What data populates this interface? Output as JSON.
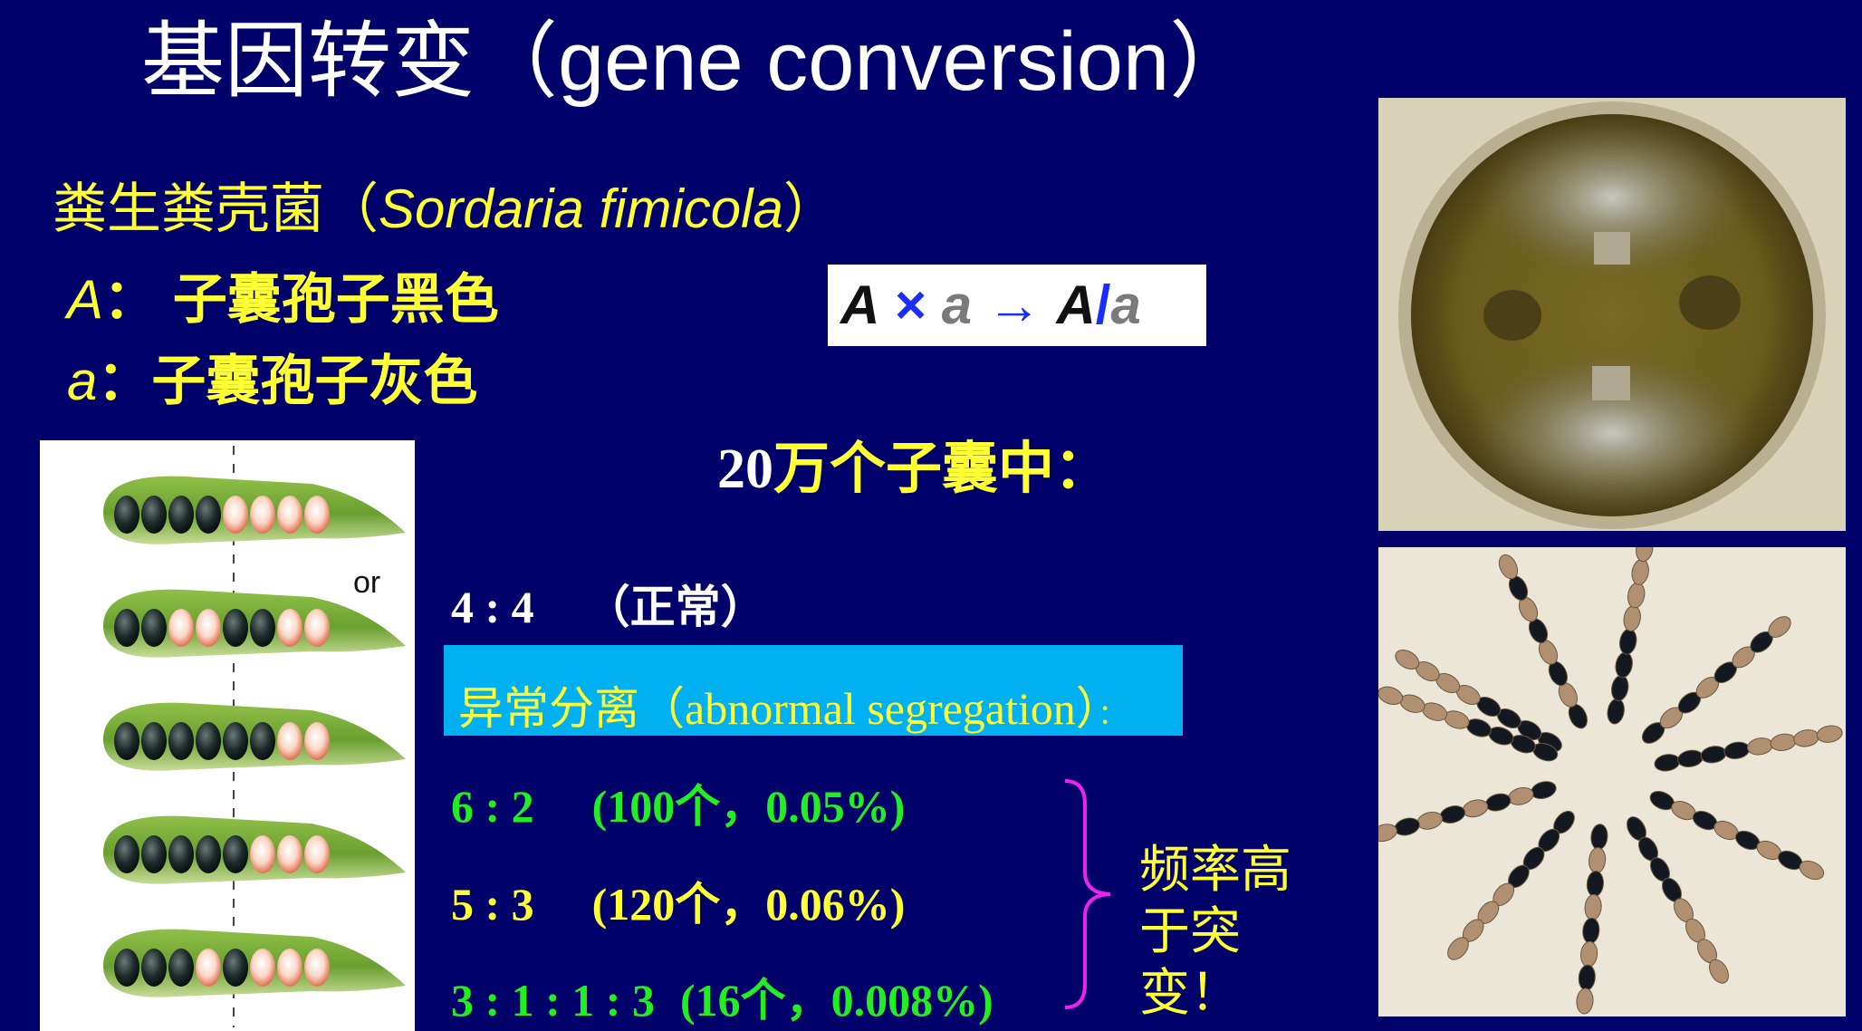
{
  "title": "基因转变（gene conversion）",
  "species": {
    "cn": "粪生粪壳菌（",
    "latin": "Sordaria  fimicola",
    "close": "）"
  },
  "alleles": [
    {
      "symbol": "A",
      "sep": "：  ",
      "text": "子囊孢子黑色"
    },
    {
      "symbol": "a",
      "sep": "：",
      "text": "子囊孢子灰色"
    }
  ],
  "formula": {
    "A": "A",
    "times": " × ",
    "a": "a",
    "arrow": " → ",
    "A2": "A",
    "slash": "/",
    "a2": "a"
  },
  "heading": {
    "number": "20",
    "text": "万个子囊中："
  },
  "normal": {
    "ratio": "4 : 4",
    "label": "（正常）"
  },
  "abnormal": {
    "label": "异常分离（abnormal segregation）",
    "colon": "："
  },
  "ratios": [
    {
      "ratio": "6 : 2",
      "info": "(100个，0.05%)"
    },
    {
      "ratio": "5 : 3",
      "info": "(120个，0.06%)"
    },
    {
      "ratio": "3 : 1 : 1 : 3",
      "info": "(16个，0.008%)"
    }
  ],
  "note": "频率高于突变！",
  "or_label": "or",
  "asci_rows": [
    [
      "d",
      "d",
      "d",
      "d",
      "l",
      "l",
      "l",
      "l"
    ],
    [
      "d",
      "d",
      "l",
      "l",
      "d",
      "d",
      "l",
      "l"
    ],
    [
      "d",
      "d",
      "d",
      "d",
      "d",
      "d",
      "l",
      "l"
    ],
    [
      "d",
      "d",
      "d",
      "d",
      "d",
      "l",
      "l",
      "l"
    ],
    [
      "d",
      "d",
      "d",
      "l",
      "d",
      "l",
      "l",
      "l"
    ]
  ],
  "colors": {
    "background": "#00006a",
    "yellow": "#ffff33",
    "green": "#22ee22",
    "cyan_box": "#00b0f0",
    "magenta_brace": "#ee22ee"
  }
}
